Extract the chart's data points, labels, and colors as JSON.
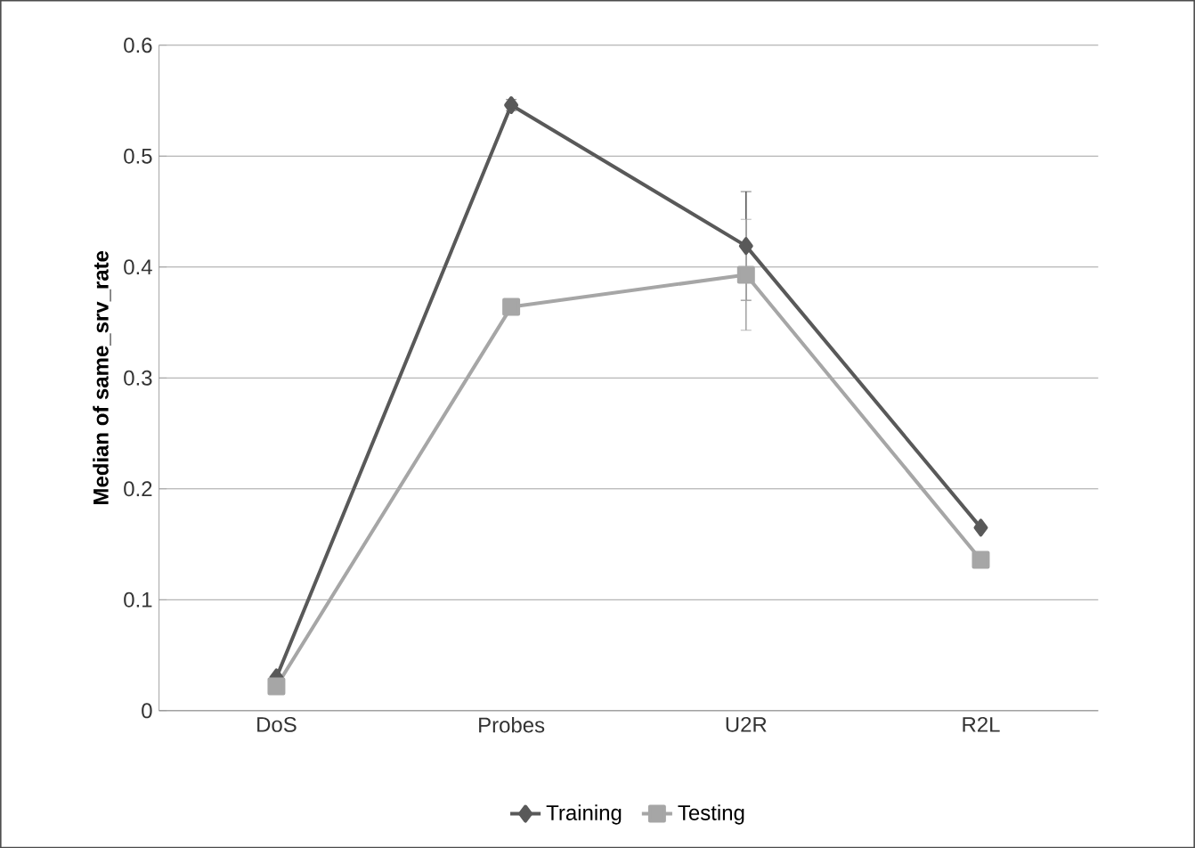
{
  "chart_data": {
    "type": "line",
    "ylabel": "Median of same_srv_rate",
    "categories": [
      "DoS",
      "Probes",
      "U2R",
      "R2L"
    ],
    "series": [
      {
        "name": "Training",
        "color": "#595959",
        "marker": "diamond",
        "values": [
          0.03,
          0.546,
          0.419,
          0.165
        ],
        "errors": [
          null,
          0.005,
          0.049,
          null
        ]
      },
      {
        "name": "Testing",
        "color": "#a6a6a6",
        "marker": "square",
        "values": [
          0.022,
          0.364,
          0.393,
          0.136
        ],
        "errors": [
          null,
          null,
          0.05,
          null
        ]
      }
    ],
    "ylim": [
      0,
      0.6
    ],
    "yticks": [
      0,
      0.1,
      0.2,
      0.3,
      0.4,
      0.5,
      0.6
    ],
    "grid": "y",
    "legend": "bottom"
  }
}
